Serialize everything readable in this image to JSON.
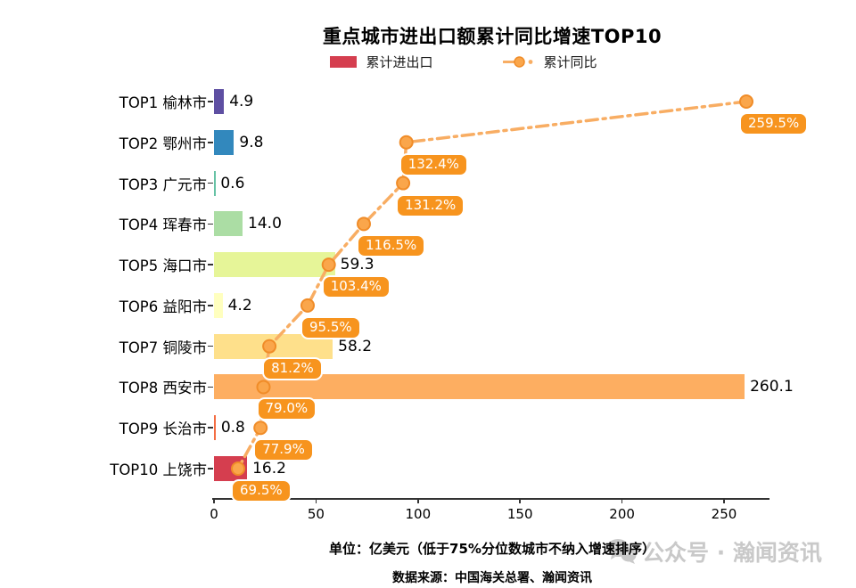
{
  "title": "重点城市进出口额累计同比增速TOP10",
  "legend": [
    {
      "label": "累计进出口",
      "type": "bar",
      "color": "#d53e4f"
    },
    {
      "label": "累计同比",
      "type": "line",
      "color": "#f8ad63"
    }
  ],
  "chart_data": {
    "type": "bar",
    "combo": "horizontal bars with overlaid dash-dot line on secondary % axis",
    "title": "重点城市进出口额累计同比增速TOP10",
    "rows": [
      {
        "rank": "TOP1",
        "city": "榆林市",
        "value": 4.9,
        "pct": 259.5
      },
      {
        "rank": "TOP2",
        "city": "鄂州市",
        "value": 9.8,
        "pct": 132.4
      },
      {
        "rank": "TOP3",
        "city": "广元市",
        "value": 0.6,
        "pct": 131.2
      },
      {
        "rank": "TOP4",
        "city": "珲春市",
        "value": 14.0,
        "pct": 116.5
      },
      {
        "rank": "TOP5",
        "city": "海口市",
        "value": 59.3,
        "pct": 103.4
      },
      {
        "rank": "TOP6",
        "city": "益阳市",
        "value": 4.2,
        "pct": 95.5
      },
      {
        "rank": "TOP7",
        "city": "铜陵市",
        "value": 58.2,
        "pct": 81.2
      },
      {
        "rank": "TOP8",
        "city": "西安市",
        "value": 260.1,
        "pct": 79.0
      },
      {
        "rank": "TOP9",
        "city": "长治市",
        "value": 0.8,
        "pct": 77.9
      },
      {
        "rank": "TOP10",
        "city": "上饶市",
        "value": 16.2,
        "pct": 69.5
      }
    ],
    "series": [
      {
        "name": "累计进出口",
        "type": "bar",
        "unit": "亿美元",
        "values": [
          4.9,
          9.8,
          0.6,
          14.0,
          59.3,
          4.2,
          58.2,
          260.1,
          0.8,
          16.2
        ]
      },
      {
        "name": "累计同比",
        "type": "line",
        "unit": "%",
        "values": [
          259.5,
          132.4,
          131.2,
          116.5,
          103.4,
          95.5,
          81.2,
          79.0,
          77.9,
          69.5
        ]
      }
    ],
    "x_axis": {
      "ticks": [
        0,
        50,
        100,
        150,
        200,
        250
      ],
      "grid": false
    },
    "bar_colors": [
      "#5e4fa2",
      "#3288bd",
      "#66c2a5",
      "#abdda4",
      "#e6f598",
      "#ffffbf",
      "#fee08b",
      "#fdae61",
      "#f46d43",
      "#d53e4f"
    ],
    "line_color": "#f8ad63",
    "marker_fill": "#faa64b",
    "marker_stroke": "#f08c28",
    "pct_label_bg": "#f7941e",
    "legend_position": "top"
  },
  "footer": {
    "unit_note": "单位：亿美元（低于75%分位数城市不纳入增速排序）",
    "source_note": "数据来源：中国海关总署、瀚闻资讯"
  },
  "watermark": {
    "text": "公众号 · 瀚闻资讯"
  }
}
